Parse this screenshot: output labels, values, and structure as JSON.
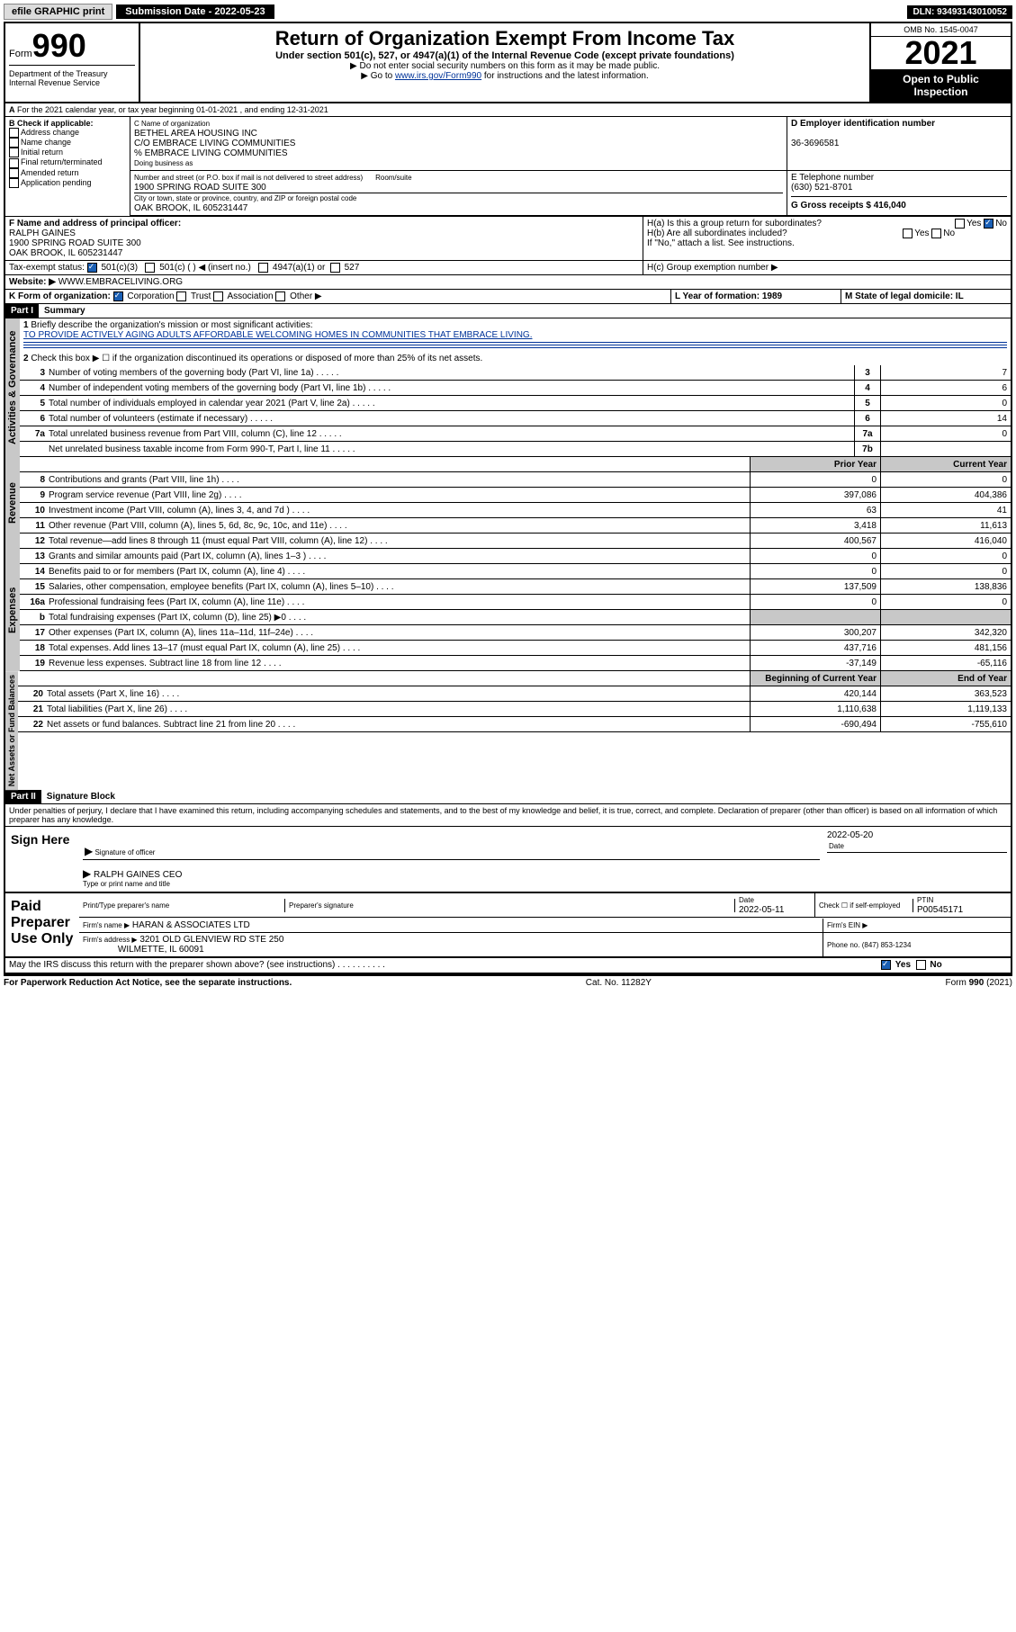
{
  "topbar": {
    "efile": "efile GRAPHIC print",
    "submission_label": "Submission Date - 2022-05-23",
    "dln": "DLN: 93493143010052"
  },
  "header": {
    "form_label": "Form",
    "form_num": "990",
    "dept": "Department of the Treasury",
    "irs": "Internal Revenue Service",
    "title": "Return of Organization Exempt From Income Tax",
    "subtitle": "Under section 501(c), 527, or 4947(a)(1) of the Internal Revenue Code (except private foundations)",
    "instr1": "▶ Do not enter social security numbers on this form as it may be made public.",
    "instr2_pre": "▶ Go to ",
    "instr2_link": "www.irs.gov/Form990",
    "instr2_post": " for instructions and the latest information.",
    "omb": "OMB No. 1545-0047",
    "year": "2021",
    "open": "Open to Public Inspection"
  },
  "periodA": "For the 2021 calendar year, or tax year beginning 01-01-2021   , and ending 12-31-2021",
  "boxB": {
    "label": "B Check if applicable:",
    "items": [
      "Address change",
      "Name change",
      "Initial return",
      "Final return/terminated",
      "Amended return",
      "Application pending"
    ]
  },
  "boxC": {
    "label": "C Name of organization",
    "l1": "BETHEL AREA HOUSING INC",
    "l2": "C/O EMBRACE LIVING COMMUNITIES",
    "l3": "% EMBRACE LIVING COMMUNITIES",
    "dba": "Doing business as",
    "street_label": "Number and street (or P.O. box if mail is not delivered to street address)",
    "room_label": "Room/suite",
    "street": "1900 SPRING ROAD SUITE 300",
    "city_label": "City or town, state or province, country, and ZIP or foreign postal code",
    "city": "OAK BROOK, IL  605231447"
  },
  "boxD": {
    "label": "D Employer identification number",
    "val": "36-3696581"
  },
  "boxE": {
    "label": "E Telephone number",
    "val": "(630) 521-8701"
  },
  "boxG": {
    "label": "G Gross receipts $ 416,040"
  },
  "boxF": {
    "label": "F Name and address of principal officer:",
    "l1": "RALPH GAINES",
    "l2": "1900 SPRING ROAD SUITE 300",
    "l3": "OAK BROOK, IL  605231447"
  },
  "boxH": {
    "a": "H(a)  Is this a group return for subordinates?",
    "b": "H(b)  Are all subordinates included?",
    "note": "If \"No,\" attach a list. See instructions.",
    "c": "H(c)  Group exemption number ▶",
    "yes": "Yes",
    "no": "No"
  },
  "boxI": {
    "label": "Tax-exempt status:",
    "o1": "501(c)(3)",
    "o2": "501(c) (  ) ◀ (insert no.)",
    "o3": "4947(a)(1) or",
    "o4": "527"
  },
  "boxJ": {
    "label": "Website: ▶",
    "val": "WWW.EMBRACELIVING.ORG"
  },
  "boxK": {
    "label": "K Form of organization:",
    "o1": "Corporation",
    "o2": "Trust",
    "o3": "Association",
    "o4": "Other ▶"
  },
  "boxL": "L Year of formation: 1989",
  "boxM": "M State of legal domicile: IL",
  "part1": {
    "hdr": "Part I",
    "title": "Summary"
  },
  "s1": {
    "q1": "Briefly describe the organization's mission or most significant activities:",
    "mission": "TO PROVIDE ACTIVELY AGING ADULTS AFFORDABLE WELCOMING HOMES IN COMMUNITIES THAT EMBRACE LIVING.",
    "q2": "Check this box ▶ ☐  if the organization discontinued its operations or disposed of more than 25% of its net assets.",
    "lines": [
      {
        "n": "3",
        "t": "Number of voting members of the governing body (Part VI, line 1a)",
        "box": "3",
        "v": "7"
      },
      {
        "n": "4",
        "t": "Number of independent voting members of the governing body (Part VI, line 1b)",
        "box": "4",
        "v": "6"
      },
      {
        "n": "5",
        "t": "Total number of individuals employed in calendar year 2021 (Part V, line 2a)",
        "box": "5",
        "v": "0"
      },
      {
        "n": "6",
        "t": "Total number of volunteers (estimate if necessary)",
        "box": "6",
        "v": "14"
      },
      {
        "n": "7a",
        "t": "Total unrelated business revenue from Part VIII, column (C), line 12",
        "box": "7a",
        "v": "0"
      },
      {
        "n": "",
        "t": "Net unrelated business taxable income from Form 990-T, Part I, line 11",
        "box": "7b",
        "v": ""
      }
    ]
  },
  "colhdr": {
    "prior": "Prior Year",
    "current": "Current Year"
  },
  "revenue": [
    {
      "n": "8",
      "t": "Contributions and grants (Part VIII, line 1h)",
      "p": "0",
      "c": "0"
    },
    {
      "n": "9",
      "t": "Program service revenue (Part VIII, line 2g)",
      "p": "397,086",
      "c": "404,386"
    },
    {
      "n": "10",
      "t": "Investment income (Part VIII, column (A), lines 3, 4, and 7d )",
      "p": "63",
      "c": "41"
    },
    {
      "n": "11",
      "t": "Other revenue (Part VIII, column (A), lines 5, 6d, 8c, 9c, 10c, and 11e)",
      "p": "3,418",
      "c": "11,613"
    },
    {
      "n": "12",
      "t": "Total revenue—add lines 8 through 11 (must equal Part VIII, column (A), line 12)",
      "p": "400,567",
      "c": "416,040"
    }
  ],
  "expenses": [
    {
      "n": "13",
      "t": "Grants and similar amounts paid (Part IX, column (A), lines 1–3 )",
      "p": "0",
      "c": "0"
    },
    {
      "n": "14",
      "t": "Benefits paid to or for members (Part IX, column (A), line 4)",
      "p": "0",
      "c": "0"
    },
    {
      "n": "15",
      "t": "Salaries, other compensation, employee benefits (Part IX, column (A), lines 5–10)",
      "p": "137,509",
      "c": "138,836"
    },
    {
      "n": "16a",
      "t": "Professional fundraising fees (Part IX, column (A), line 11e)",
      "p": "0",
      "c": "0"
    },
    {
      "n": "b",
      "t": "Total fundraising expenses (Part IX, column (D), line 25) ▶0",
      "p": "",
      "c": "",
      "gray": true
    },
    {
      "n": "17",
      "t": "Other expenses (Part IX, column (A), lines 11a–11d, 11f–24e)",
      "p": "300,207",
      "c": "342,320"
    },
    {
      "n": "18",
      "t": "Total expenses. Add lines 13–17 (must equal Part IX, column (A), line 25)",
      "p": "437,716",
      "c": "481,156"
    },
    {
      "n": "19",
      "t": "Revenue less expenses. Subtract line 18 from line 12",
      "p": "-37,149",
      "c": "-65,116"
    }
  ],
  "colhdr2": {
    "prior": "Beginning of Current Year",
    "current": "End of Year"
  },
  "netassets": [
    {
      "n": "20",
      "t": "Total assets (Part X, line 16)",
      "p": "420,144",
      "c": "363,523"
    },
    {
      "n": "21",
      "t": "Total liabilities (Part X, line 26)",
      "p": "1,110,638",
      "c": "1,119,133"
    },
    {
      "n": "22",
      "t": "Net assets or fund balances. Subtract line 21 from line 20",
      "p": "-690,494",
      "c": "-755,610"
    }
  ],
  "vlabels": {
    "gov": "Activities & Governance",
    "rev": "Revenue",
    "exp": "Expenses",
    "net": "Net Assets or Fund Balances"
  },
  "part2": {
    "hdr": "Part II",
    "title": "Signature Block"
  },
  "penalties": "Under penalties of perjury, I declare that I have examined this return, including accompanying schedules and statements, and to the best of my knowledge and belief, it is true, correct, and complete. Declaration of preparer (other than officer) is based on all information of which preparer has any knowledge.",
  "sign": {
    "here": "Sign Here",
    "sig_label": "Signature of officer",
    "date": "2022-05-20",
    "date_label": "Date",
    "name": "RALPH GAINES CEO",
    "name_label": "Type or print name and title"
  },
  "paid": {
    "label": "Paid Preparer Use Only",
    "h1": "Print/Type preparer's name",
    "h2": "Preparer's signature",
    "h3": "Date",
    "date": "2022-05-11",
    "h4": "Check ☐ if self-employed",
    "h5": "PTIN",
    "ptin": "P00545171",
    "firm_label": "Firm's name    ▶",
    "firm": "HARAN & ASSOCIATES LTD",
    "ein_label": "Firm's EIN ▶",
    "addr_label": "Firm's address ▶",
    "addr1": "3201 OLD GLENVIEW RD STE 250",
    "addr2": "WILMETTE, IL  60091",
    "phone_label": "Phone no. (847) 853-1234"
  },
  "discuss": "May the IRS discuss this return with the preparer shown above? (see instructions)",
  "footer": {
    "l": "For Paperwork Reduction Act Notice, see the separate instructions.",
    "m": "Cat. No. 11282Y",
    "r": "Form 990 (2021)"
  }
}
